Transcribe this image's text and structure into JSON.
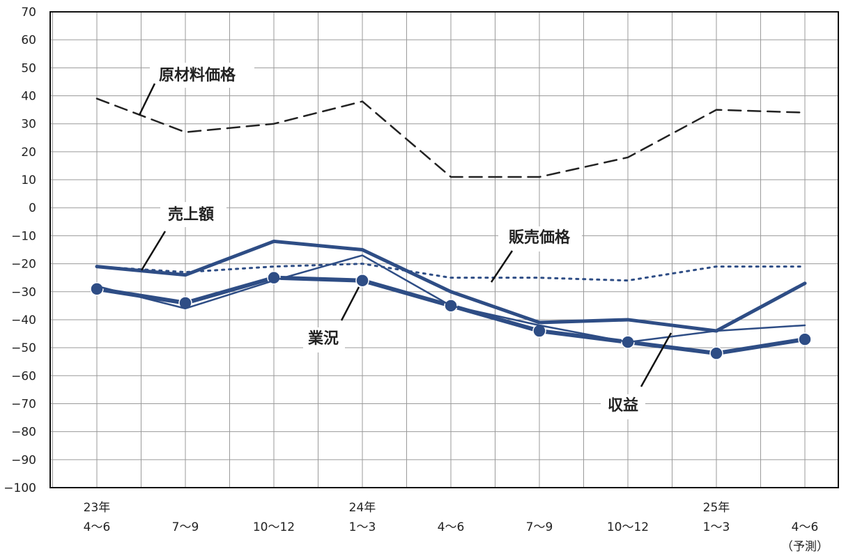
{
  "chart_data": {
    "type": "line",
    "ylim": [
      -100,
      70
    ],
    "yticks": [
      70,
      60,
      50,
      40,
      30,
      20,
      10,
      0,
      -10,
      -20,
      -30,
      -40,
      -50,
      -60,
      -70,
      -80,
      -90,
      -100
    ],
    "x_label_lines": [
      [
        "23年",
        "4～6"
      ],
      [
        "",
        "7～9"
      ],
      [
        "",
        "10～12"
      ],
      [
        "24年",
        "1～3"
      ],
      [
        "",
        "4～6"
      ],
      [
        "",
        "7～9"
      ],
      [
        "",
        "10～12"
      ],
      [
        "25年",
        "1～3"
      ],
      [
        "",
        "4～6",
        "（予測）"
      ]
    ],
    "series": [
      {
        "name": "原材料価格",
        "style": "dashed",
        "color": "#222222",
        "values": [
          39,
          27,
          30,
          38,
          11,
          11,
          18,
          35,
          34
        ]
      },
      {
        "name": "売上額",
        "style": "solid-thick",
        "color": "#2e4d85",
        "values": [
          -21,
          -24,
          -12,
          -15,
          -30,
          -41,
          -40,
          -44,
          -27
        ]
      },
      {
        "name": "販売価格",
        "style": "dotted",
        "color": "#2e4d85",
        "values": [
          -21,
          -23,
          -21,
          -20,
          -25,
          -25,
          -26,
          -21,
          -21
        ]
      },
      {
        "name": "業況",
        "style": "solid-markers",
        "color": "#2e4d85",
        "values": [
          -29,
          -34,
          -25,
          -26,
          -35,
          -44,
          -48,
          -52,
          -47
        ]
      },
      {
        "name": "収益",
        "style": "solid-thin",
        "color": "#2e4d85",
        "values": [
          -28,
          -36,
          -26,
          -17,
          -35,
          -42,
          -48,
          -44,
          -42
        ]
      }
    ],
    "grid": true,
    "legend": "callouts"
  }
}
